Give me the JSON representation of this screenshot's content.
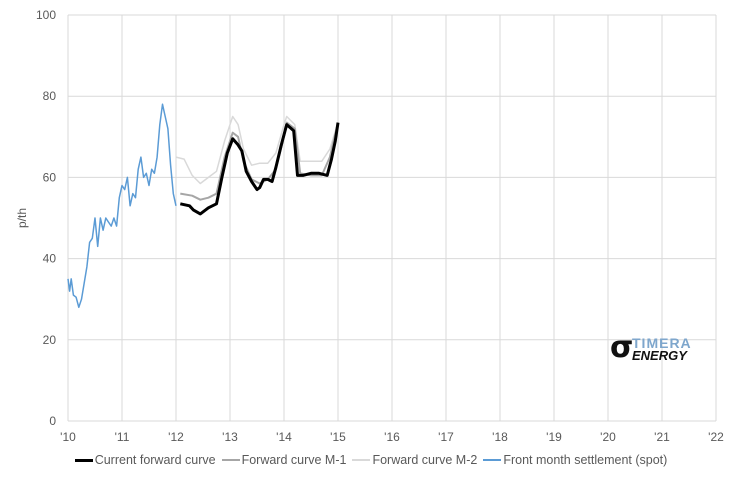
{
  "chart_data": {
    "type": "line",
    "title": "",
    "xlabel": "",
    "ylabel": "p/th",
    "xlim": [
      2010,
      2022
    ],
    "ylim": [
      0,
      100
    ],
    "yticks": [
      0,
      20,
      40,
      60,
      80,
      100
    ],
    "xticks": [
      2010,
      2011,
      2012,
      2013,
      2014,
      2015,
      2016,
      2017,
      2018,
      2019,
      2020,
      2021,
      2022
    ],
    "xtick_labels": [
      "'10",
      "'11",
      "'12",
      "'13",
      "'14",
      "'15",
      "'16",
      "'17",
      "'18",
      "'19",
      "'20",
      "'21",
      "'22"
    ],
    "grid": true,
    "legend_position": "bottom",
    "series": [
      {
        "name": "Current forward curve",
        "color": "#000000",
        "width": 3,
        "x": [
          2012.08,
          2012.25,
          2012.32,
          2012.45,
          2012.6,
          2012.75,
          2012.85,
          2012.95,
          2013.05,
          2013.15,
          2013.22,
          2013.3,
          2013.4,
          2013.5,
          2013.55,
          2013.62,
          2013.7,
          2013.78,
          2013.85,
          2013.95,
          2014.05,
          2014.18,
          2014.25,
          2014.35,
          2014.5,
          2014.65,
          2014.8,
          2014.88,
          2014.95,
          2015.0
        ],
        "y": [
          53.5,
          53,
          52,
          51,
          52.5,
          53.5,
          60,
          66,
          69.5,
          68,
          66.5,
          61.5,
          59,
          57,
          57.5,
          59.5,
          59.5,
          59,
          62.5,
          68,
          73,
          71.5,
          60.5,
          60.5,
          61,
          61,
          60.5,
          64.5,
          69,
          73.5
        ]
      },
      {
        "name": "Forward curve M-1",
        "color": "#a6a6a6",
        "width": 2,
        "x": [
          2012.08,
          2012.3,
          2012.45,
          2012.6,
          2012.75,
          2012.9,
          2013.05,
          2013.15,
          2013.25,
          2013.4,
          2013.55,
          2013.7,
          2013.85,
          2014.0,
          2014.05,
          2014.2,
          2014.3,
          2014.5,
          2014.7,
          2014.85,
          2015.0
        ],
        "y": [
          56,
          55.5,
          54.5,
          55,
          56,
          65,
          71,
          70,
          64,
          59.5,
          58.5,
          59.5,
          62,
          70,
          73.5,
          72,
          61,
          60.5,
          60.5,
          65,
          73.5
        ]
      },
      {
        "name": "Forward curve M-2",
        "color": "#d9d9d9",
        "width": 1.5,
        "x": [
          2012.0,
          2012.15,
          2012.3,
          2012.45,
          2012.6,
          2012.75,
          2012.9,
          2013.05,
          2013.15,
          2013.25,
          2013.4,
          2013.55,
          2013.7,
          2013.85,
          2014.0,
          2014.05,
          2014.2,
          2014.3,
          2014.5,
          2014.7,
          2014.85,
          2015.0
        ],
        "y": [
          65,
          64.5,
          60.5,
          58.5,
          60,
          61.5,
          69,
          75,
          73,
          67,
          63,
          63.5,
          63.5,
          66,
          73,
          75,
          73,
          64,
          64,
          64,
          67,
          73.5
        ]
      },
      {
        "name": "Front month settlement (spot)",
        "color": "#5b9bd5",
        "width": 1.5,
        "x": [
          2010.0,
          2010.03,
          2010.06,
          2010.1,
          2010.15,
          2010.2,
          2010.25,
          2010.3,
          2010.35,
          2010.4,
          2010.45,
          2010.5,
          2010.55,
          2010.6,
          2010.65,
          2010.7,
          2010.75,
          2010.8,
          2010.85,
          2010.9,
          2010.95,
          2011.0,
          2011.05,
          2011.1,
          2011.15,
          2011.2,
          2011.25,
          2011.3,
          2011.35,
          2011.4,
          2011.45,
          2011.5,
          2011.55,
          2011.6,
          2011.65,
          2011.7,
          2011.75,
          2011.8,
          2011.85,
          2011.9,
          2011.95,
          2012.0
        ],
        "y": [
          35,
          32,
          35,
          31,
          30.5,
          28,
          30,
          34,
          38,
          44,
          45,
          50,
          43,
          50,
          47,
          50,
          49,
          48,
          50,
          48,
          55,
          58,
          57,
          60,
          53,
          56,
          55,
          62,
          65,
          60,
          61,
          58,
          62,
          61,
          65,
          73,
          78,
          75,
          72,
          63,
          56,
          53
        ]
      }
    ]
  },
  "logo": {
    "symbol": "σ",
    "line1": "TIMERA",
    "line2": "ENERGY"
  }
}
